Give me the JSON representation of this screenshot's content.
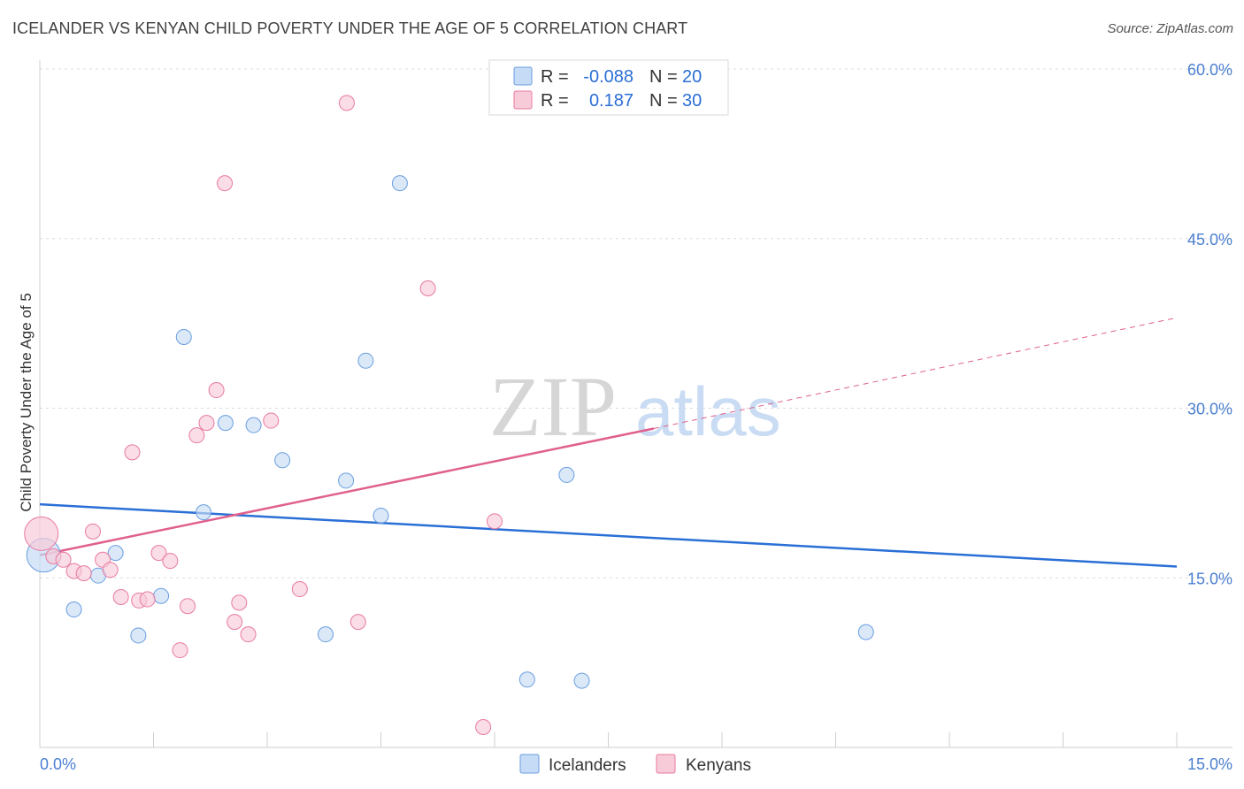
{
  "title": "ICELANDER VS KENYAN CHILD POVERTY UNDER THE AGE OF 5 CORRELATION CHART",
  "source": "Source: ZipAtlas.com",
  "watermark": {
    "zip": "ZIP",
    "atlas": "atlas"
  },
  "chart_data": {
    "type": "scatter",
    "ylabel": "Child Poverty Under the Age of 5",
    "xlim": [
      0,
      15
    ],
    "ylim": [
      0,
      60
    ],
    "x_tick_labels": [
      "0.0%",
      "15.0%"
    ],
    "y_ticks": [
      15,
      30,
      45,
      60
    ],
    "y_tick_labels": [
      "15.0%",
      "30.0%",
      "45.0%",
      "60.0%"
    ],
    "grid": true,
    "legend_position": "top-center",
    "series": [
      {
        "name": "Icelanders",
        "color": "#6a9ee0",
        "fill": "#c6dbf5",
        "R_label": "R =",
        "R": "-0.088",
        "N_label": "N =",
        "N": "20",
        "trend": {
          "x": [
            0,
            15
          ],
          "y": [
            21.5,
            16.0
          ],
          "dashed_extension": false
        },
        "points": [
          {
            "x": 0.05,
            "y": 17.0,
            "big": true
          },
          {
            "x": 0.45,
            "y": 12.2
          },
          {
            "x": 0.77,
            "y": 15.2
          },
          {
            "x": 1.0,
            "y": 17.2
          },
          {
            "x": 1.3,
            "y": 9.9
          },
          {
            "x": 1.6,
            "y": 13.4
          },
          {
            "x": 1.9,
            "y": 36.3
          },
          {
            "x": 2.16,
            "y": 20.8
          },
          {
            "x": 2.45,
            "y": 28.7
          },
          {
            "x": 2.82,
            "y": 28.5
          },
          {
            "x": 3.2,
            "y": 25.4
          },
          {
            "x": 3.77,
            "y": 10.0
          },
          {
            "x": 4.04,
            "y": 23.6
          },
          {
            "x": 4.3,
            "y": 34.2
          },
          {
            "x": 4.5,
            "y": 20.5
          },
          {
            "x": 4.75,
            "y": 49.9
          },
          {
            "x": 6.43,
            "y": 6.0
          },
          {
            "x": 6.95,
            "y": 24.1
          },
          {
            "x": 7.15,
            "y": 5.9
          },
          {
            "x": 10.9,
            "y": 10.2
          }
        ]
      },
      {
        "name": "Kenyans",
        "color": "#e87aa0",
        "fill": "#f8cbd9",
        "R_label": "R =",
        "R": "0.187",
        "N_label": "N =",
        "N": "30",
        "trend": {
          "x": [
            0,
            8.1
          ],
          "y": [
            17.0,
            28.2
          ],
          "dashed_extension": true,
          "dash_to": {
            "x": 15,
            "y": 38.0
          }
        },
        "points": [
          {
            "x": 0.02,
            "y": 18.9,
            "big": true
          },
          {
            "x": 0.18,
            "y": 16.9
          },
          {
            "x": 0.31,
            "y": 16.6
          },
          {
            "x": 0.45,
            "y": 15.6
          },
          {
            "x": 0.58,
            "y": 15.4
          },
          {
            "x": 0.7,
            "y": 19.1
          },
          {
            "x": 0.83,
            "y": 16.6
          },
          {
            "x": 0.93,
            "y": 15.7
          },
          {
            "x": 1.07,
            "y": 13.3
          },
          {
            "x": 1.22,
            "y": 26.1
          },
          {
            "x": 1.31,
            "y": 13.0
          },
          {
            "x": 1.42,
            "y": 13.1
          },
          {
            "x": 1.57,
            "y": 17.2
          },
          {
            "x": 1.72,
            "y": 16.5
          },
          {
            "x": 1.85,
            "y": 8.6
          },
          {
            "x": 1.95,
            "y": 12.5
          },
          {
            "x": 2.07,
            "y": 27.6
          },
          {
            "x": 2.2,
            "y": 28.7
          },
          {
            "x": 2.33,
            "y": 31.6
          },
          {
            "x": 2.44,
            "y": 49.9
          },
          {
            "x": 2.57,
            "y": 11.1
          },
          {
            "x": 2.63,
            "y": 12.8
          },
          {
            "x": 2.75,
            "y": 10.0
          },
          {
            "x": 3.05,
            "y": 28.9
          },
          {
            "x": 3.43,
            "y": 14.0
          },
          {
            "x": 4.05,
            "y": 57.0
          },
          {
            "x": 4.2,
            "y": 11.1
          },
          {
            "x": 5.12,
            "y": 40.6
          },
          {
            "x": 5.85,
            "y": 1.8
          },
          {
            "x": 6.0,
            "y": 20.0
          }
        ]
      }
    ]
  }
}
